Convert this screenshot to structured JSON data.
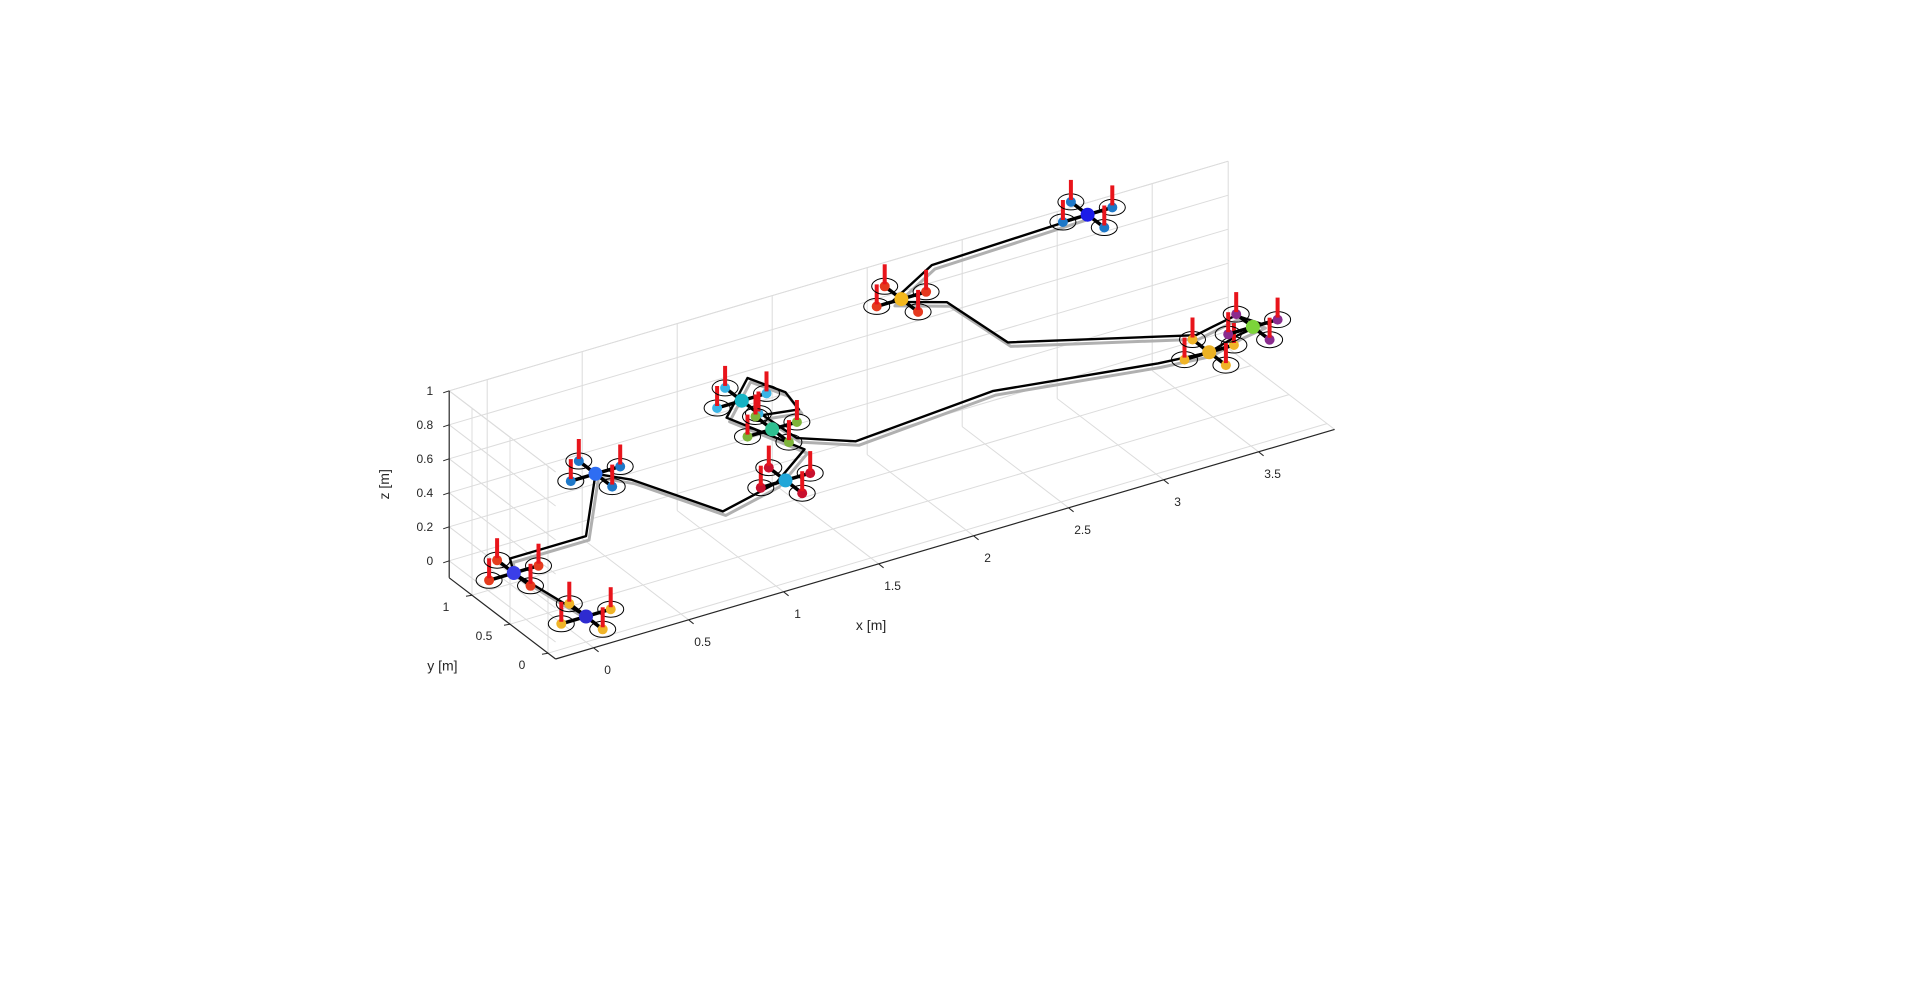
{
  "chart_data": {
    "type": "line3d",
    "title": "",
    "xlabel": "x [m]",
    "ylabel": "y [m]",
    "zlabel": "z [m]",
    "xlim": [
      -0.2,
      3.9
    ],
    "ylim": [
      -0.1,
      1.3
    ],
    "zlim": [
      -0.1,
      1.0
    ],
    "xticks": [
      0,
      0.5,
      1,
      1.5,
      2,
      2.5,
      3,
      3.5
    ],
    "xtick_labels": [
      "0",
      "0.5",
      "1",
      "1.5",
      "2",
      "2.5",
      "3",
      "3.5"
    ],
    "yticks": [
      0,
      0.5,
      1
    ],
    "ytick_labels": [
      "0",
      "0.5",
      "1"
    ],
    "zticks": [
      0,
      0.2,
      0.4,
      0.6,
      0.8,
      1.0
    ],
    "ztick_labels": [
      "0",
      "0.2",
      "0.4",
      "0.6",
      "0.8",
      "1"
    ],
    "grid": true,
    "trajectory_color": "#000000",
    "shadow_color": "#b0b0b0",
    "thrust_color": "#e8141b",
    "trajectory": [
      [
        0.0,
        0.0,
        0.05
      ],
      [
        -0.1,
        0.7,
        0.1
      ],
      [
        0.0,
        1.0,
        0.05
      ],
      [
        0.4,
        1.0,
        0.05
      ],
      [
        0.45,
        1.0,
        0.4
      ],
      [
        0.6,
        0.9,
        0.35
      ],
      [
        1.0,
        0.7,
        0.1
      ],
      [
        1.3,
        0.75,
        0.15
      ],
      [
        1.45,
        0.75,
        0.3
      ],
      [
        1.1,
        0.9,
        0.55
      ],
      [
        1.25,
        1.0,
        0.7
      ],
      [
        1.45,
        1.0,
        0.55
      ],
      [
        1.5,
        0.95,
        0.45
      ],
      [
        1.25,
        0.8,
        0.55
      ],
      [
        1.35,
        0.6,
        0.45
      ],
      [
        1.6,
        0.45,
        0.4
      ],
      [
        2.2,
        0.15,
        0.6
      ],
      [
        3.05,
        0.1,
        0.5
      ],
      [
        3.3,
        0.05,
        0.5
      ],
      [
        3.45,
        0.05,
        0.55
      ],
      [
        3.6,
        0.1,
        0.55
      ],
      [
        3.5,
        0.2,
        0.6
      ],
      [
        3.4,
        0.25,
        0.55
      ],
      [
        3.25,
        0.1,
        0.6
      ],
      [
        2.5,
        0.7,
        0.6
      ],
      [
        2.3,
        1.0,
        0.8
      ],
      [
        2.05,
        1.1,
        0.85
      ],
      [
        2.3,
        1.2,
        0.95
      ],
      [
        3.1,
        1.15,
        1.0
      ]
    ],
    "quadrotors": [
      {
        "position": [
          0.0,
          0.0,
          0.05
        ],
        "body_color": "#2e2bd0",
        "rotor_color": "#f0b428"
      },
      {
        "position": [
          -0.1,
          0.7,
          0.1
        ],
        "body_color": "#3a3ee8",
        "rotor_color": "#e53c1e"
      },
      {
        "position": [
          0.45,
          1.0,
          0.4
        ],
        "body_color": "#2e6df2",
        "rotor_color": "#1e78c8"
      },
      {
        "position": [
          1.35,
          0.75,
          0.15
        ],
        "body_color": "#21a6d8",
        "rotor_color": "#c8102e"
      },
      {
        "position": [
          1.2,
          0.95,
          0.6
        ],
        "body_color": "#15b3c4",
        "rotor_color": "#3ab4e6"
      },
      {
        "position": [
          1.3,
          0.8,
          0.45
        ],
        "body_color": "#2ec091",
        "rotor_color": "#7db43a"
      },
      {
        "position": [
          2.1,
          1.1,
          0.85
        ],
        "body_color": "#f4b81d",
        "rotor_color": "#e5391e"
      },
      {
        "position": [
          3.1,
          1.15,
          1.0
        ],
        "body_color": "#1c1ce8",
        "rotor_color": "#1e78c8"
      },
      {
        "position": [
          3.3,
          0.05,
          0.5
        ],
        "body_color": "#ecb224",
        "rotor_color": "#f0b428"
      },
      {
        "position": [
          3.55,
          0.1,
          0.55
        ],
        "body_color": "#7cd43a",
        "rotor_color": "#8a2c8e"
      }
    ]
  }
}
